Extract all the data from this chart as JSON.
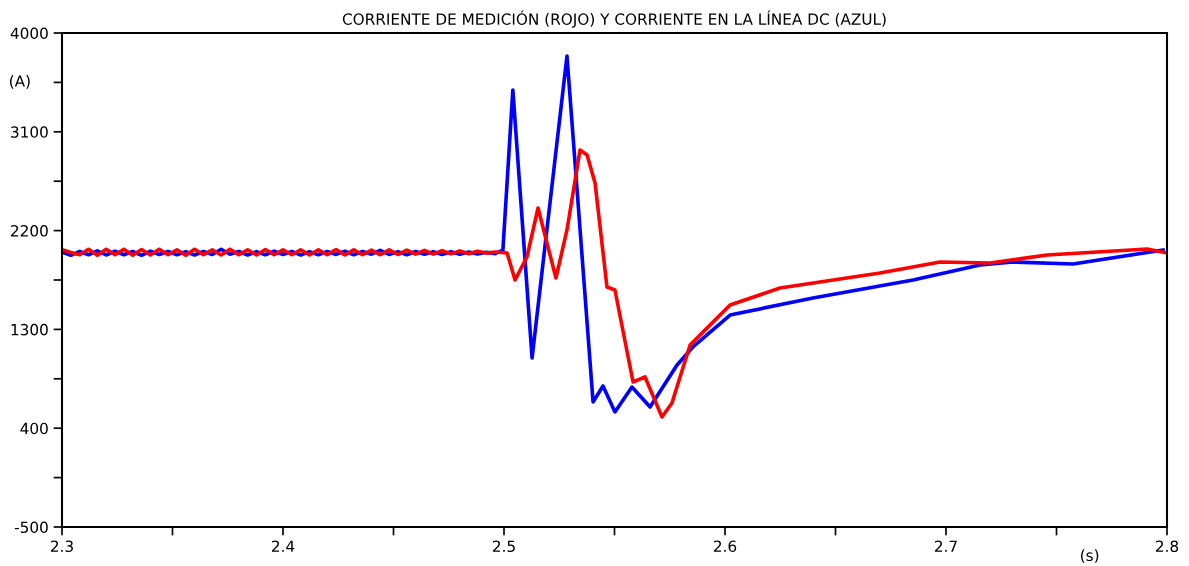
{
  "chart_data": {
    "type": "line",
    "title": "CORRIENTE DE MEDICIÓN (ROJO) Y CORRIENTE EN LA LÍNEA DC (AZUL)",
    "xlabel": "(s)",
    "ylabel": "(A)",
    "xlim": [
      2.3,
      2.8
    ],
    "ylim": [
      -500,
      4000
    ],
    "xticks": [
      2.3,
      {
        "value": 2.35,
        "label": null
      },
      2.4,
      {
        "value": 2.45,
        "label": null
      },
      2.5,
      {
        "value": 2.55,
        "label": null
      },
      2.6,
      {
        "value": 2.65,
        "label": null
      },
      2.7,
      {
        "value": 2.75,
        "label": null
      },
      2.8
    ],
    "yticks": [
      -500,
      {
        "value": -50,
        "label": null
      },
      400,
      {
        "value": 850,
        "label": null
      },
      1300,
      {
        "value": 1750,
        "label": null
      },
      2200,
      {
        "value": 2650,
        "label": null
      },
      3100,
      {
        "value": 3550,
        "label": null
      },
      4000
    ],
    "grid": false,
    "legend": false,
    "line_style": "solid",
    "marker": "none",
    "series": [
      {
        "color": "#0000ff",
        "x": [
          2.3,
          2.304,
          2.308,
          2.312,
          2.316,
          2.32,
          2.324,
          2.328,
          2.332,
          2.336,
          2.34,
          2.344,
          2.348,
          2.352,
          2.356,
          2.36,
          2.364,
          2.368,
          2.372,
          2.376,
          2.38,
          2.384,
          2.388,
          2.392,
          2.396,
          2.4,
          2.404,
          2.408,
          2.412,
          2.416,
          2.42,
          2.424,
          2.428,
          2.432,
          2.436,
          2.44,
          2.444,
          2.448,
          2.452,
          2.456,
          2.46,
          2.464,
          2.468,
          2.472,
          2.476,
          2.48,
          2.484,
          2.488,
          2.492,
          2.496,
          2.4995,
          2.504,
          2.5127,
          2.5285,
          2.5403,
          2.5448,
          2.5502,
          2.5579,
          2.5661,
          2.5783,
          2.5855,
          2.6023,
          2.6398,
          2.6851,
          2.7154,
          2.7303,
          2.7575,
          2.7982
        ],
        "values": [
          2005,
          1975,
          2010,
          1980,
          2015,
          1978,
          2012,
          1980,
          2010,
          1975,
          2012,
          1982,
          2010,
          1980,
          2008,
          1978,
          2010,
          1982,
          2030,
          1985,
          2010,
          1978,
          2008,
          1980,
          2012,
          1982,
          2010,
          1978,
          2008,
          1980,
          2010,
          1983,
          2012,
          1980,
          2010,
          1985,
          2020,
          1983,
          2008,
          1980,
          2010,
          1985,
          2008,
          1982,
          2008,
          1985,
          2005,
          1988,
          2002,
          1990,
          2023,
          3481,
          1040,
          3790,
          639,
          785,
          548,
          775,
          593,
          976,
          1140,
          1431,
          1586,
          1750,
          1887,
          1914,
          1896,
          2023
        ]
      },
      {
        "color": "#ff0000",
        "x": [
          2.3,
          2.304,
          2.308,
          2.312,
          2.316,
          2.32,
          2.324,
          2.328,
          2.332,
          2.336,
          2.34,
          2.344,
          2.348,
          2.352,
          2.356,
          2.36,
          2.364,
          2.368,
          2.372,
          2.376,
          2.38,
          2.384,
          2.388,
          2.392,
          2.396,
          2.4,
          2.404,
          2.408,
          2.412,
          2.416,
          2.42,
          2.424,
          2.428,
          2.432,
          2.436,
          2.44,
          2.444,
          2.448,
          2.452,
          2.456,
          2.46,
          2.464,
          2.468,
          2.472,
          2.476,
          2.48,
          2.484,
          2.488,
          2.492,
          2.496,
          2.5014,
          2.505,
          2.5104,
          2.5154,
          2.5235,
          2.5285,
          2.5344,
          2.5376,
          2.5412,
          2.5466,
          2.5502,
          2.5584,
          2.5638,
          2.5715,
          2.576,
          2.5842,
          2.6023,
          2.6249,
          2.6701,
          2.6973,
          2.7199,
          2.7457,
          2.791,
          2.8
        ],
        "values": [
          2025,
          2000,
          1980,
          2030,
          1975,
          2030,
          1980,
          2030,
          1975,
          2028,
          1978,
          2030,
          1980,
          2025,
          1975,
          2030,
          1980,
          2025,
          1978,
          2030,
          1980,
          2025,
          1978,
          2028,
          1980,
          2025,
          1980,
          2025,
          1978,
          2025,
          1980,
          2028,
          1978,
          2025,
          1980,
          2022,
          1980,
          2025,
          1982,
          2022,
          1985,
          2020,
          1985,
          2018,
          1988,
          2015,
          1990,
          2012,
          1995,
          2005,
          1996,
          1750,
          1960,
          2406,
          1768,
          2206,
          2934,
          2889,
          2634,
          1686,
          1659,
          821,
          867,
          502,
          630,
          1158,
          1522,
          1677,
          1814,
          1914,
          1905,
          1978,
          2032,
          1996
        ]
      }
    ]
  }
}
